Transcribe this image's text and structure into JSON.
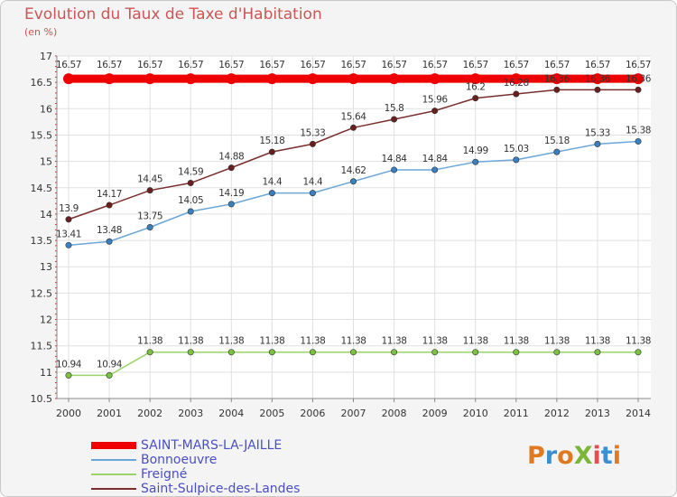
{
  "title": "Evolution du Taux de Taxe d'Habitation",
  "subtitle": "(en %)",
  "logo": {
    "text": "ProXiti",
    "letters": [
      {
        "ch": "P",
        "color": "#e07a20"
      },
      {
        "ch": "r",
        "color": "#3b8fd0"
      },
      {
        "ch": "o",
        "color": "#e07a20"
      },
      {
        "ch": "X",
        "color": "#7bb53a"
      },
      {
        "ch": "i",
        "color": "#e05050"
      },
      {
        "ch": "t",
        "color": "#3b8fd0"
      },
      {
        "ch": "i",
        "color": "#e07a20"
      }
    ]
  },
  "chart_data": {
    "type": "line",
    "x": [
      "2000",
      "2001",
      "2002",
      "2003",
      "2004",
      "2005",
      "2006",
      "2007",
      "2008",
      "2009",
      "2010",
      "2011",
      "2012",
      "2013",
      "2014"
    ],
    "ylim": [
      10.5,
      17
    ],
    "yticks": [
      "10.5",
      "11",
      "11.5",
      "12",
      "12.5",
      "13",
      "13.5",
      "14",
      "14.5",
      "15",
      "15.5",
      "16",
      "16.5",
      "17"
    ],
    "grid": true,
    "legend_position": "bottom-left",
    "series": [
      {
        "name": "SAINT-MARS-LA-JAILLE",
        "color": "#ee0000",
        "marker": "#ee0000",
        "width": 9,
        "label_offset": 0,
        "values": [
          16.57,
          16.57,
          16.57,
          16.57,
          16.57,
          16.57,
          16.57,
          16.57,
          16.57,
          16.57,
          16.57,
          16.57,
          16.57,
          16.57,
          16.57
        ],
        "labels": [
          "16.57",
          "16.57",
          "16.57",
          "16.57",
          "16.57",
          "16.57",
          "16.57",
          "16.57",
          "16.57",
          "16.57",
          "16.57",
          "16.57",
          "16.57",
          "16.57",
          "16.57"
        ]
      },
      {
        "name": "Bonnoeuvre",
        "color": "#6aa7d8",
        "marker": "#3a7fc0",
        "width": 1.5,
        "values": [
          13.41,
          13.48,
          13.75,
          14.05,
          14.19,
          14.4,
          14.4,
          14.62,
          14.84,
          14.84,
          14.99,
          15.03,
          15.18,
          15.33,
          15.38
        ],
        "labels": [
          "13.41",
          "13.48",
          "13.75",
          "14.05",
          "14.19",
          "14.4",
          "14.4",
          "14.62",
          "14.84",
          "14.84",
          "14.99",
          "15.03",
          "15.18",
          "15.33",
          "15.38"
        ]
      },
      {
        "name": "Freigné",
        "color": "#9bd36a",
        "marker": "#7bc040",
        "width": 1.5,
        "values": [
          10.94,
          10.94,
          11.38,
          11.38,
          11.38,
          11.38,
          11.38,
          11.38,
          11.38,
          11.38,
          11.38,
          11.38,
          11.38,
          11.38,
          11.38
        ],
        "labels": [
          "10.94",
          "10.94",
          "11.38",
          "11.38",
          "11.38",
          "11.38",
          "11.38",
          "11.38",
          "11.38",
          "11.38",
          "11.38",
          "11.38",
          "11.38",
          "11.38",
          "11.38"
        ]
      },
      {
        "name": "Saint-Sulpice-des-Landes",
        "color": "#7a2e2e",
        "marker": "#6a1f1f",
        "width": 1.5,
        "values": [
          13.9,
          14.17,
          14.45,
          14.59,
          14.88,
          15.18,
          15.33,
          15.64,
          15.8,
          15.96,
          16.2,
          16.28,
          16.36,
          16.36,
          16.36
        ],
        "labels": [
          "13.9",
          "14.17",
          "14.45",
          "14.59",
          "14.88",
          "15.18",
          "15.33",
          "15.64",
          "15.8",
          "15.96",
          "16.2",
          "16.28",
          "16.36",
          "16.36",
          "16.36"
        ]
      }
    ]
  }
}
